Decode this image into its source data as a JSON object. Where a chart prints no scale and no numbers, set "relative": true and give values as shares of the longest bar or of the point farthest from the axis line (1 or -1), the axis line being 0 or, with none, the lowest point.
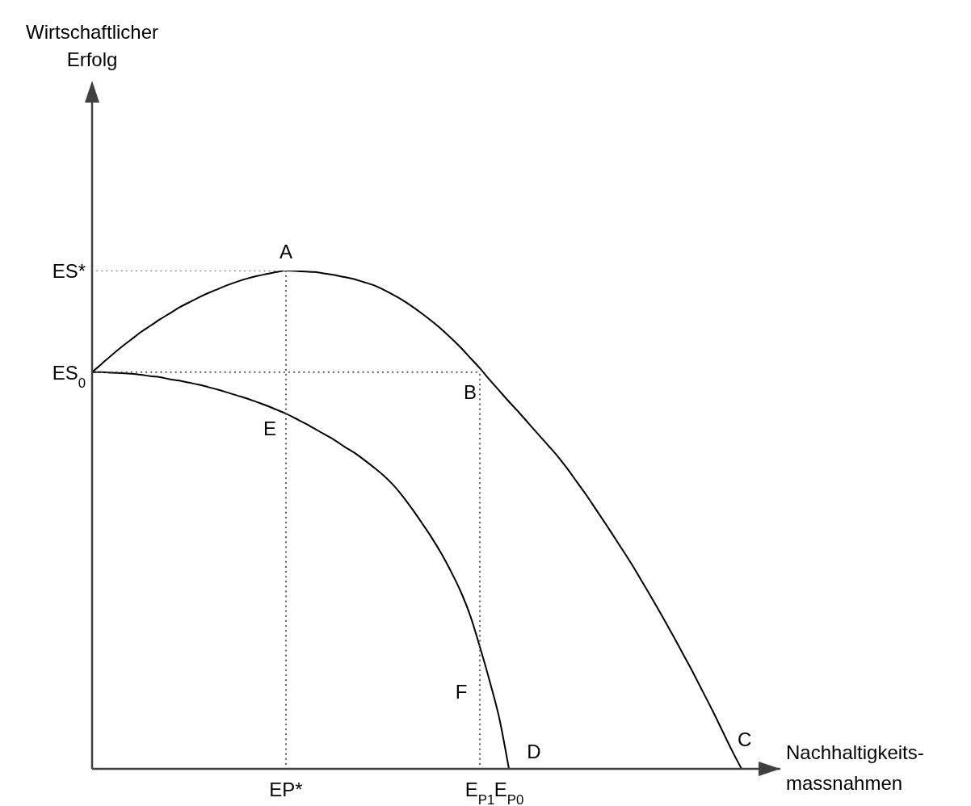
{
  "chart_data": {
    "type": "line",
    "relative": true,
    "xlabel": "Nachhaltigkeits-\nmassnahmen",
    "categories": [
      null,
      null,
      null,
      null,
      null,
      null,
      null,
      null,
      null,
      null,
      null,
      null,
      null,
      null,
      null,
      null,
      null,
      null,
      null,
      null,
      "EP*",
      null,
      null,
      null,
      null,
      null,
      null,
      null,
      null,
      null,
      null,
      null,
      null,
      null,
      null,
      null,
      null,
      null,
      null,
      null,
      "E$_{P1}$",
      null,
      null,
      "E$_{P0}$",
      null,
      null,
      null,
      null,
      null,
      null,
      null,
      null,
      null,
      null,
      null,
      null,
      null,
      null,
      null,
      null,
      null,
      null,
      null,
      null,
      null,
      null,
      null,
      null,
      null,
      null,
      null,
      null
    ],
    "marker": "none",
    "line_style": "solid",
    "series": [
      {
        "color": "#000000",
        "values": [
          0.796,
          0.813,
          0.83,
          0.846,
          0.861,
          0.876,
          0.889,
          0.902,
          0.914,
          0.926,
          0.936,
          0.946,
          0.955,
          0.963,
          0.971,
          0.978,
          0.984,
          0.989,
          0.993,
          0.997,
          1,
          0.999,
          0.998,
          0.997,
          0.994,
          0.991,
          0.987,
          0.983,
          0.977,
          0.971,
          0.962,
          0.952,
          0.941,
          0.928,
          0.914,
          0.899,
          0.883,
          0.865,
          0.846,
          0.825,
          0.804,
          0.781,
          0.759,
          0.737,
          0.716,
          0.694,
          0.672,
          0.65,
          0.628,
          0.603,
          0.576,
          0.549,
          0.52,
          0.491,
          0.461,
          0.431,
          0.4,
          0.367,
          0.334,
          0.3,
          0.265,
          0.229,
          0.193,
          0.155,
          0.117,
          0.077,
          0.037,
          0,
          null,
          null,
          null,
          null
        ]
      },
      {
        "color": "#000000",
        "values": [
          0.796,
          0.796,
          0.795,
          0.794,
          0.793,
          0.791,
          0.788,
          0.786,
          0.782,
          0.779,
          0.775,
          0.771,
          0.766,
          0.761,
          0.755,
          0.749,
          0.743,
          0.736,
          0.729,
          0.721,
          0.713,
          0.703,
          0.693,
          0.682,
          0.671,
          0.66,
          0.647,
          0.635,
          0.621,
          0.606,
          0.59,
          0.571,
          0.548,
          0.522,
          0.494,
          0.465,
          0.433,
          0.397,
          0.357,
          0.308,
          0.245,
          0.177,
          0.102,
          0,
          null,
          null,
          null,
          null,
          null,
          null,
          null,
          null,
          null,
          null,
          null,
          null,
          null,
          null,
          null,
          null,
          null,
          null,
          null,
          null,
          null,
          null,
          null,
          null,
          null,
          null,
          null,
          null
        ]
      },
      {
        "color": "#555555",
        "line_style": "dotted",
        "values": [
          1,
          1,
          1,
          1,
          1,
          1,
          1,
          1,
          1,
          1,
          1,
          1,
          1,
          1,
          1,
          1,
          1,
          1,
          1,
          1,
          1,
          null,
          null,
          null,
          null,
          null,
          null,
          null,
          null,
          null,
          null,
          null,
          null,
          null,
          null,
          null,
          null,
          null,
          null,
          null,
          null,
          null,
          null,
          null,
          null,
          null,
          null,
          null,
          null,
          null,
          null,
          null,
          null,
          null,
          null,
          null,
          null,
          null,
          null,
          null,
          null,
          null,
          null,
          null,
          null,
          null,
          null,
          null,
          null,
          null,
          null,
          null
        ]
      },
      {
        "color": "#555555",
        "line_style": "dotted",
        "values": [
          0.796,
          0.796,
          0.796,
          0.796,
          0.796,
          0.796,
          0.796,
          0.796,
          0.796,
          0.796,
          0.796,
          0.796,
          0.796,
          0.796,
          0.796,
          0.796,
          0.796,
          0.796,
          0.796,
          0.796,
          0.796,
          0.796,
          0.796,
          0.796,
          0.796,
          0.796,
          0.796,
          0.796,
          0.796,
          0.796,
          0.796,
          0.796,
          0.796,
          0.796,
          0.796,
          0.796,
          0.796,
          0.796,
          0.796,
          0.796,
          0.796,
          null,
          null,
          null,
          null,
          null,
          null,
          null,
          null,
          null,
          null,
          null,
          null,
          null,
          null,
          null,
          null,
          null,
          null,
          null,
          null,
          null,
          null,
          null,
          null,
          null,
          null,
          null,
          null,
          null,
          null,
          null
        ]
      },
      {
        "color": "#555555",
        "line_style": "dotted",
        "x": [
          "EP*",
          "EP*"
        ],
        "values": [
          0,
          1
        ]
      },
      {
        "color": "#555555",
        "line_style": "dotted",
        "x": [
          "E$_{P1}$",
          "E$_{P1}$"
        ],
        "values": [
          0,
          0.796
        ]
      }
    ],
    "annotations": [
      "ES*",
      "ES$_{0}$",
      {
        "text": "A",
        "x": "EP*",
        "y": 1
      },
      {
        "text": "B",
        "x": "E$_{P1}$",
        "y": 0.796
      },
      "C",
      {
        "text": "D",
        "x": "E$_{P0}$",
        "y": 0
      },
      {
        "text": "E",
        "x": "EP*",
        "y": 0.713
      },
      {
        "text": "F",
        "x": "E$_{P1}$",
        "y": 0.245
      },
      "Wirtschaftlicher\nErfolg"
    ]
  }
}
